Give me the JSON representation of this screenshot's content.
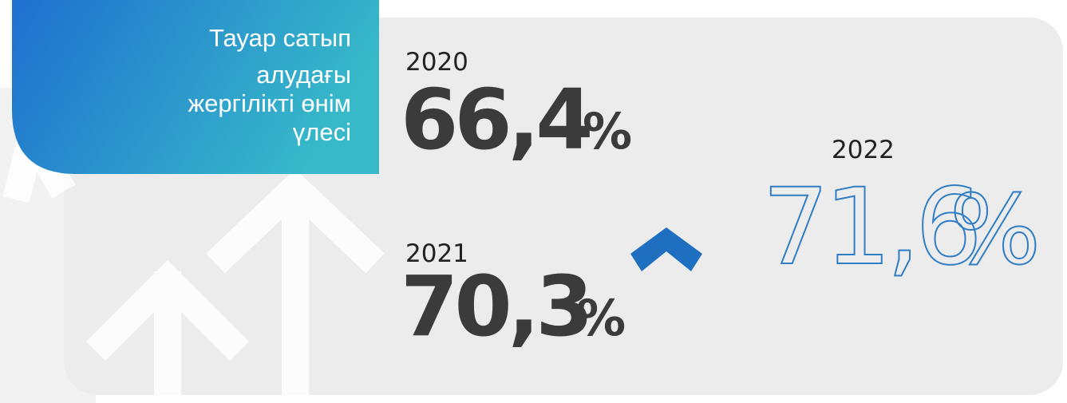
{
  "card": {
    "title_lines": [
      "Тауар сатып",
      "алудағы",
      "жергілікті өнім",
      "үлесі"
    ],
    "items": [
      {
        "year": "2020",
        "value": "66,4",
        "unit": "%"
      },
      {
        "year": "2021",
        "value": "70,3",
        "unit": "%"
      },
      {
        "year": "2022",
        "value": "71,6",
        "unit": "%"
      }
    ]
  }
}
